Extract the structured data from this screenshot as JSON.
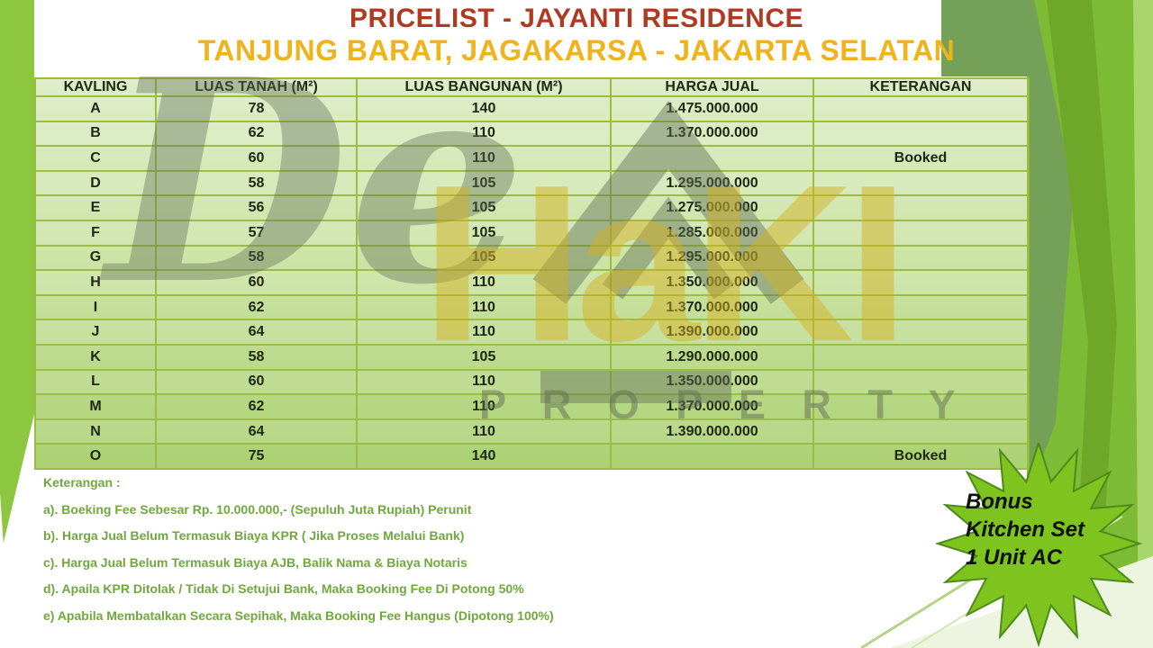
{
  "header": {
    "title": "PRICELIST - JAYANTI RESIDENCE",
    "subtitle": "TANJUNG BARAT, JAGAKARSA - JAKARTA SELATAN"
  },
  "table": {
    "headers": [
      "KAVLING",
      "LUAS TANAH (M²)",
      "LUAS BANGUNAN (M²)",
      "HARGA JUAL",
      "KETERANGAN"
    ],
    "rows": [
      {
        "kavling": "A",
        "luas_tanah": "78",
        "luas_bangunan": "140",
        "harga_jual": "1.475.000.000",
        "keterangan": ""
      },
      {
        "kavling": "B",
        "luas_tanah": "62",
        "luas_bangunan": "110",
        "harga_jual": "1.370.000.000",
        "keterangan": ""
      },
      {
        "kavling": "C",
        "luas_tanah": "60",
        "luas_bangunan": "110",
        "harga_jual": "",
        "keterangan": "Booked"
      },
      {
        "kavling": "D",
        "luas_tanah": "58",
        "luas_bangunan": "105",
        "harga_jual": "1.295.000.000",
        "keterangan": ""
      },
      {
        "kavling": "E",
        "luas_tanah": "56",
        "luas_bangunan": "105",
        "harga_jual": "1.275.000.000",
        "keterangan": ""
      },
      {
        "kavling": "F",
        "luas_tanah": "57",
        "luas_bangunan": "105",
        "harga_jual": "1.285.000.000",
        "keterangan": ""
      },
      {
        "kavling": "G",
        "luas_tanah": "58",
        "luas_bangunan": "105",
        "harga_jual": "1.295.000.000",
        "keterangan": ""
      },
      {
        "kavling": "H",
        "luas_tanah": "60",
        "luas_bangunan": "110",
        "harga_jual": "1.350.000.000",
        "keterangan": ""
      },
      {
        "kavling": "I",
        "luas_tanah": "62",
        "luas_bangunan": "110",
        "harga_jual": "1.370.000.000",
        "keterangan": ""
      },
      {
        "kavling": "J",
        "luas_tanah": "64",
        "luas_bangunan": "110",
        "harga_jual": "1.390.000.000",
        "keterangan": ""
      },
      {
        "kavling": "K",
        "luas_tanah": "58",
        "luas_bangunan": "105",
        "harga_jual": "1.290.000.000",
        "keterangan": ""
      },
      {
        "kavling": "L",
        "luas_tanah": "60",
        "luas_bangunan": "110",
        "harga_jual": "1.350.000.000",
        "keterangan": ""
      },
      {
        "kavling": "M",
        "luas_tanah": "62",
        "luas_bangunan": "110",
        "harga_jual": "1.370.000.000",
        "keterangan": ""
      },
      {
        "kavling": "N",
        "luas_tanah": "64",
        "luas_bangunan": "110",
        "harga_jual": "1.390.000.000",
        "keterangan": ""
      },
      {
        "kavling": "O",
        "luas_tanah": "75",
        "luas_bangunan": "140",
        "harga_jual": "",
        "keterangan": "Booked"
      }
    ]
  },
  "notes": {
    "heading": "Keterangan :",
    "items": [
      "a). Boeking Fee Sebesar Rp. 10.000.000,- (Sepuluh Juta Rupiah) Perunit",
      "b). Harga Jual Belum Termasuk Biaya KPR ( Jika Proses Melalui Bank)",
      "c). Harga Jual Belum Termasuk Biaya AJB, Balik Nama & Biaya Notaris",
      "d). Apaila KPR Ditolak / Tidak Di Setujui Bank, Maka Booking Fee Di Potong 50%",
      "e)  Apabila Membatalkan Secara Sepihak, Maka Booking Fee Hangus (Dipotong 100%)"
    ]
  },
  "badge": {
    "lines": [
      "Bonus",
      "Kitchen Set",
      "1 Unit AC"
    ]
  },
  "watermark": {
    "script": "De",
    "brand": "HaKI",
    "word": "P R O P E R T Y"
  },
  "colors": {
    "title_red": "#ae3a21",
    "subtitle_yellow": "#f0b21d",
    "table_border": "#9cbd43",
    "table_fill_top": "#dfedc9",
    "table_fill_bottom": "#abd172",
    "notes_green": "#6fa93c",
    "badge_fill": "#7fc31e",
    "badge_stroke": "#4c8a1b",
    "accent_green": "#8dc63f",
    "sage_green": "#74a157",
    "watermark_gray": "#606e54",
    "watermark_gold": "#d5b01e"
  }
}
